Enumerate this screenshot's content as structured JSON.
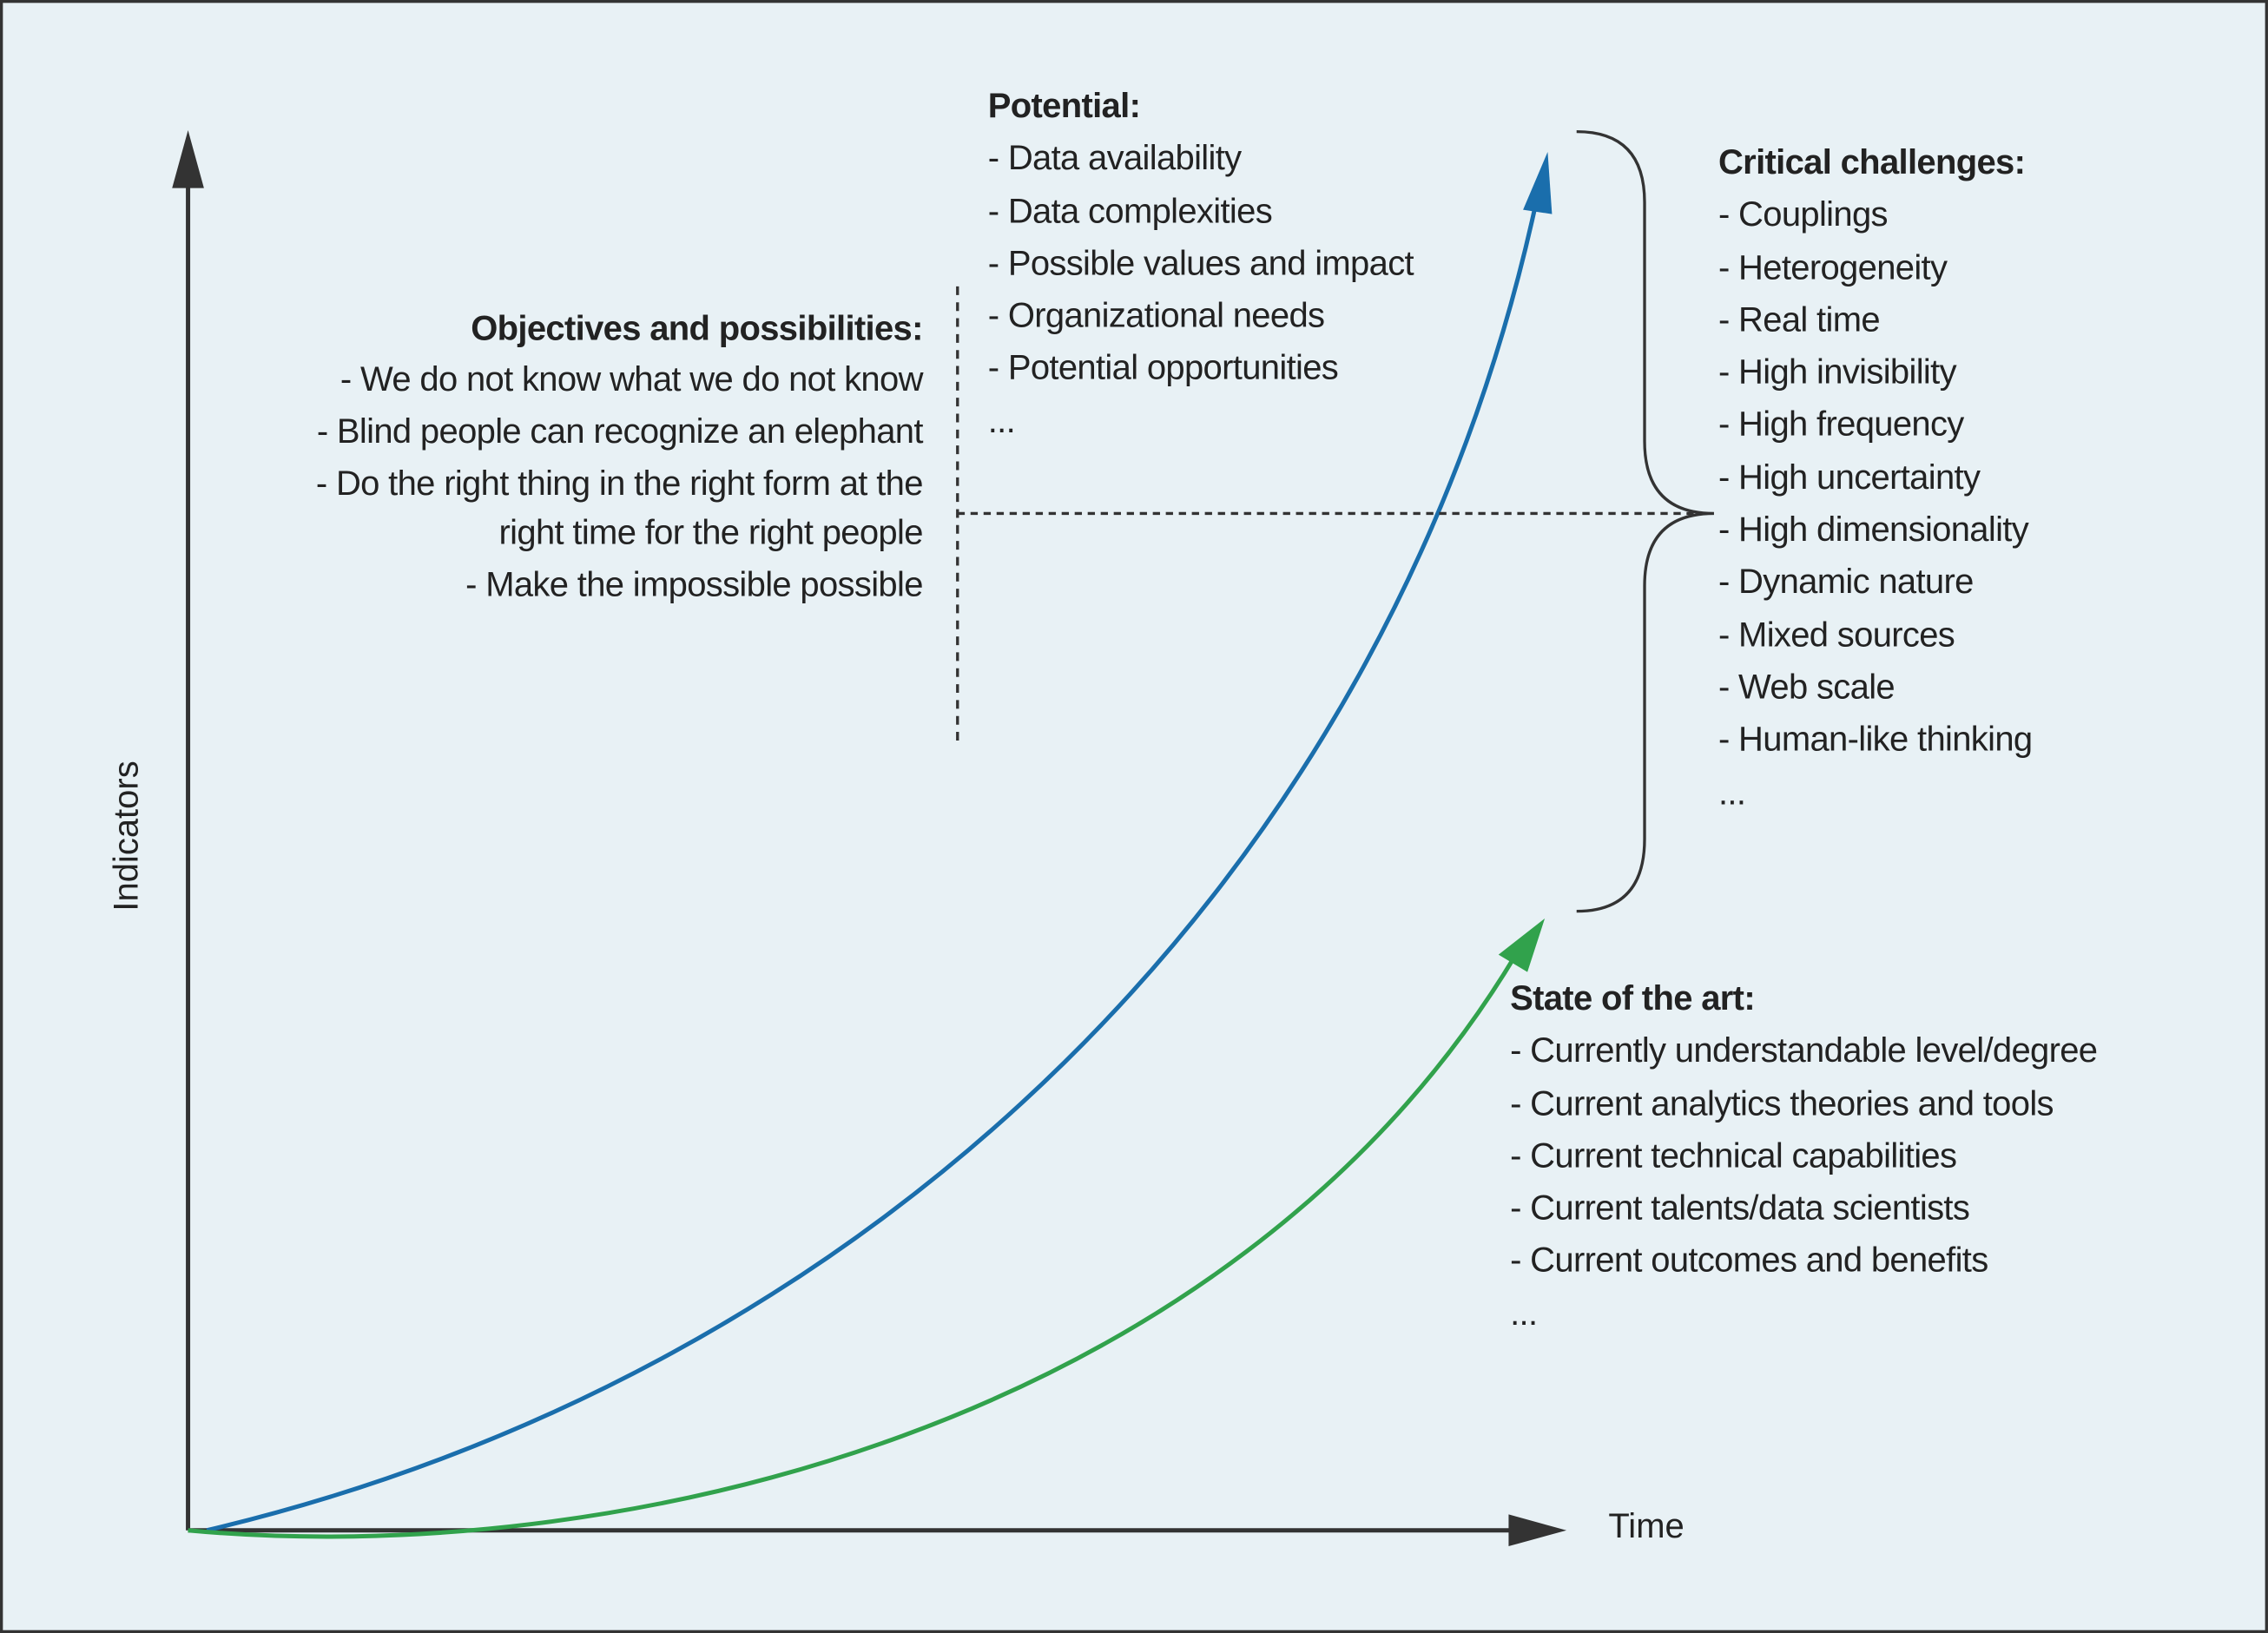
{
  "axes": {
    "y_label": "Indicators",
    "x_label": "Time"
  },
  "potential": {
    "title": "Potential:",
    "items": [
      "- Data availability",
      "- Data complexities",
      "- Possible values and impact",
      "- Organizational needs",
      "- Potential opportunities",
      "..."
    ]
  },
  "objectives": {
    "title": "Objectives and possibilities:",
    "items": [
      "- We do not know what we do not know",
      "- Blind people can recognize an elephant",
      "- Do the right thing in the right form at the right time for the right people",
      "- Make the impossible possible"
    ]
  },
  "critical_challenges": {
    "title": "Critical challenges:",
    "items": [
      "- Couplings",
      "- Heterogeneity",
      "- Real time",
      "- High invisibility",
      "- High frequency",
      "- High uncertainty",
      "- High dimensionality",
      "- Dynamic nature",
      "- Mixed sources",
      "- Web scale",
      "- Human-like thinking",
      "..."
    ]
  },
  "state_of_the_art": {
    "title": "State of the art:",
    "items": [
      "- Currently understandable level/degree",
      "- Current analytics theories and tools",
      "- Current technical capabilities",
      "- Current talents/data scientists",
      "- Current outcomes and benefits",
      "..."
    ]
  }
}
